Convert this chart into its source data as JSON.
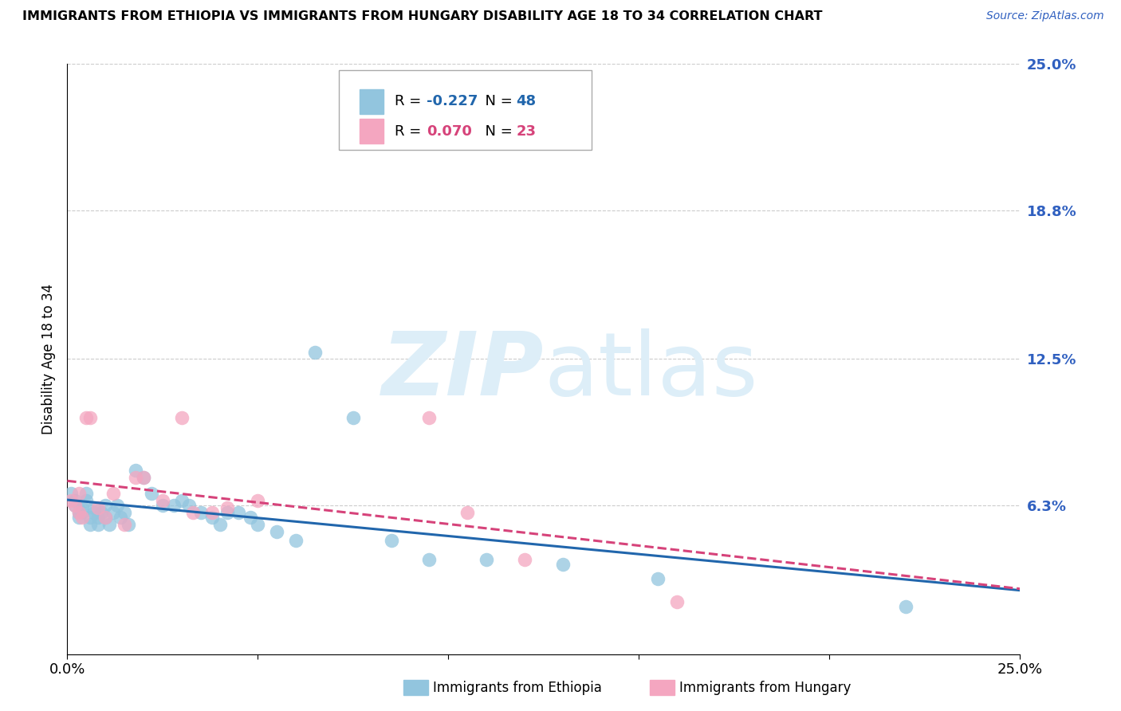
{
  "title": "IMMIGRANTS FROM ETHIOPIA VS IMMIGRANTS FROM HUNGARY DISABILITY AGE 18 TO 34 CORRELATION CHART",
  "source": "Source: ZipAtlas.com",
  "ylabel": "Disability Age 18 to 34",
  "xlim": [
    0.0,
    0.25
  ],
  "ylim": [
    0.0,
    0.25
  ],
  "xticks": [
    0.0,
    0.05,
    0.1,
    0.15,
    0.2,
    0.25
  ],
  "ytick_labels": [
    "",
    "6.3%",
    "12.5%",
    "18.8%",
    "25.0%"
  ],
  "ytick_positions": [
    0.0,
    0.063,
    0.125,
    0.188,
    0.25
  ],
  "xtick_labels": [
    "0.0%",
    "",
    "",
    "",
    "",
    "25.0%"
  ],
  "r_ethiopia": -0.227,
  "n_ethiopia": 48,
  "r_hungary": 0.07,
  "n_hungary": 23,
  "color_ethiopia": "#92c5de",
  "color_hungary": "#f4a6c0",
  "trendline_color_ethiopia": "#2166ac",
  "trendline_color_hungary": "#d6437a",
  "watermark_color": "#ddeef8",
  "ethiopia_x": [
    0.001,
    0.002,
    0.002,
    0.003,
    0.003,
    0.004,
    0.004,
    0.005,
    0.005,
    0.006,
    0.006,
    0.007,
    0.007,
    0.008,
    0.008,
    0.009,
    0.01,
    0.01,
    0.011,
    0.012,
    0.013,
    0.014,
    0.015,
    0.016,
    0.018,
    0.02,
    0.022,
    0.025,
    0.028,
    0.03,
    0.032,
    0.035,
    0.038,
    0.04,
    0.042,
    0.045,
    0.048,
    0.05,
    0.055,
    0.06,
    0.065,
    0.075,
    0.085,
    0.095,
    0.11,
    0.13,
    0.155,
    0.22
  ],
  "ethiopia_y": [
    0.068,
    0.065,
    0.063,
    0.06,
    0.058,
    0.062,
    0.06,
    0.068,
    0.065,
    0.058,
    0.055,
    0.06,
    0.062,
    0.058,
    0.055,
    0.06,
    0.063,
    0.058,
    0.055,
    0.06,
    0.063,
    0.058,
    0.06,
    0.055,
    0.078,
    0.075,
    0.068,
    0.063,
    0.063,
    0.065,
    0.063,
    0.06,
    0.058,
    0.055,
    0.06,
    0.06,
    0.058,
    0.055,
    0.052,
    0.048,
    0.128,
    0.1,
    0.048,
    0.04,
    0.04,
    0.038,
    0.032,
    0.02
  ],
  "hungary_x": [
    0.001,
    0.002,
    0.003,
    0.003,
    0.004,
    0.005,
    0.006,
    0.008,
    0.01,
    0.012,
    0.015,
    0.018,
    0.02,
    0.025,
    0.03,
    0.033,
    0.038,
    0.042,
    0.05,
    0.095,
    0.105,
    0.12,
    0.16
  ],
  "hungary_y": [
    0.065,
    0.063,
    0.068,
    0.06,
    0.058,
    0.1,
    0.1,
    0.062,
    0.058,
    0.068,
    0.055,
    0.075,
    0.075,
    0.065,
    0.1,
    0.06,
    0.06,
    0.062,
    0.065,
    0.1,
    0.06,
    0.04,
    0.022
  ]
}
